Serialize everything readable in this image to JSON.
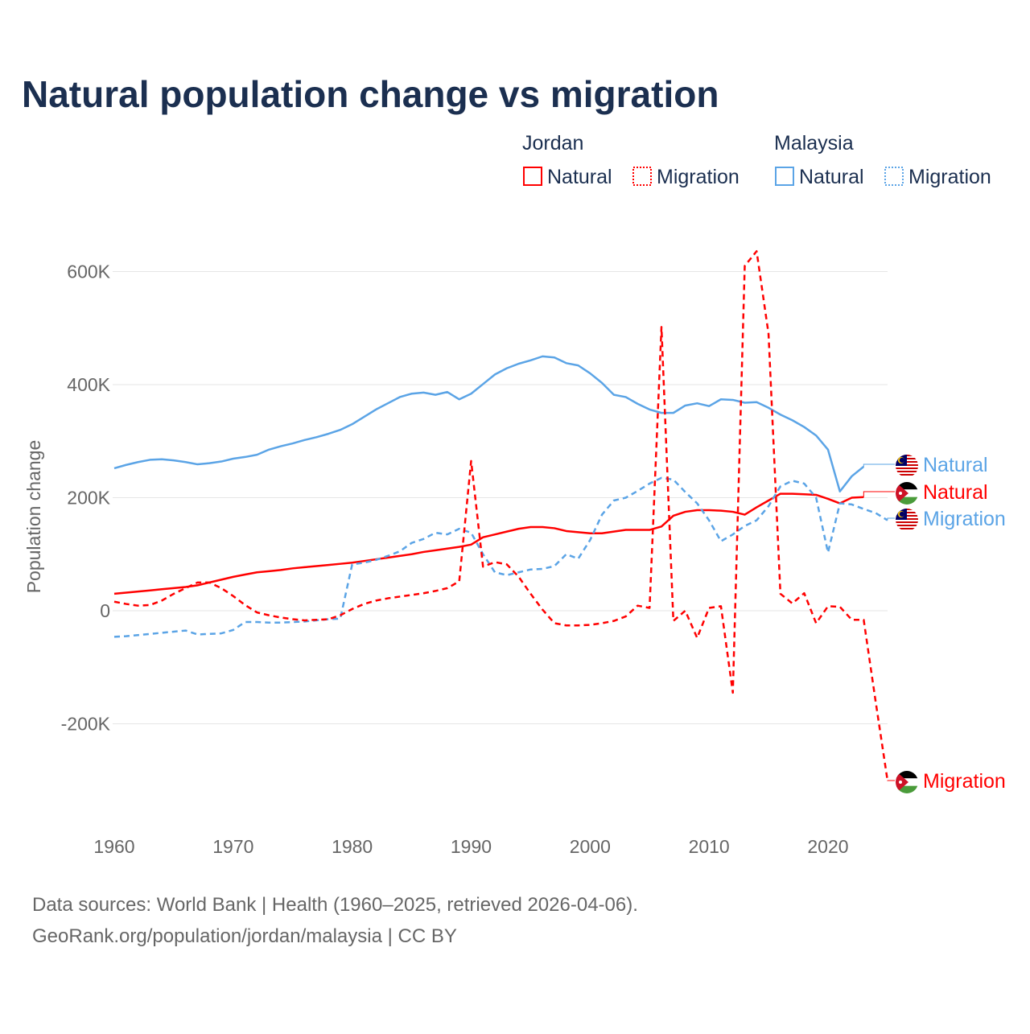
{
  "chart_data": {
    "type": "line",
    "title": "Natural population change vs migration",
    "xlabel": "",
    "ylabel": "Population change",
    "xlim": [
      1960,
      2025
    ],
    "ylim": [
      -300000,
      650000
    ],
    "grid": true,
    "x_ticks": [
      "1960",
      "1970",
      "1980",
      "1990",
      "2000",
      "2010",
      "2020"
    ],
    "x_tick_values": [
      1960,
      1970,
      1980,
      1990,
      2000,
      2010,
      2020
    ],
    "y_ticks": [
      "600K",
      "400K",
      "200K",
      "0",
      "-200K"
    ],
    "y_tick_values": [
      600,
      400,
      200,
      0,
      -200
    ],
    "units": "thousands",
    "start_year": 1960,
    "legend": {
      "placement": "top-right",
      "groups": [
        {
          "name": "Jordan",
          "entries": [
            "Natural",
            "Migration"
          ]
        },
        {
          "name": "Malaysia",
          "entries": [
            "Natural",
            "Migration"
          ]
        }
      ]
    },
    "series": [
      {
        "name": "Malaysia Natural",
        "country": "Malaysia",
        "label": "Natural",
        "color": "#5ba4e6",
        "dash": false,
        "values": [
          252,
          258,
          263,
          267,
          268,
          266,
          263,
          259,
          261,
          264,
          269,
          272,
          276,
          285,
          291,
          296,
          302,
          307,
          313,
          320,
          330,
          343,
          356,
          367,
          378,
          384,
          386,
          382,
          387,
          374,
          384,
          401,
          418,
          429,
          437,
          443,
          450,
          448,
          438,
          434,
          420,
          403,
          382,
          378,
          366,
          356,
          350,
          350,
          363,
          367,
          362,
          374,
          373,
          368,
          369,
          359,
          347,
          337,
          325,
          310,
          285,
          211,
          238,
          255,
          null,
          null
        ]
      },
      {
        "name": "Jordan Natural",
        "country": "Jordan",
        "label": "Natural",
        "color": "#ff0000",
        "dash": false,
        "values": [
          30,
          32,
          34,
          36,
          38,
          40,
          42,
          45,
          50,
          55,
          60,
          64,
          68,
          70,
          72,
          75,
          77,
          79,
          81,
          83,
          85,
          88,
          91,
          94,
          97,
          100,
          104,
          107,
          110,
          113,
          117,
          130,
          135,
          140,
          145,
          148,
          148,
          146,
          141,
          139,
          137,
          137,
          140,
          143,
          143,
          143,
          149,
          168,
          175,
          178,
          178,
          177,
          175,
          170,
          183,
          195,
          207,
          207,
          206,
          205,
          198,
          190,
          200,
          201,
          null,
          null
        ]
      },
      {
        "name": "Malaysia Migration",
        "country": "Malaysia",
        "label": "Migration",
        "color": "#5ba4e6",
        "dash": true,
        "values": [
          -46,
          -45,
          -43,
          -41,
          -39,
          -37,
          -35,
          -42,
          -41,
          -40,
          -34,
          -20,
          -20,
          -21,
          -21,
          -20,
          -19,
          -17,
          -15,
          -14,
          82,
          85,
          90,
          97,
          105,
          120,
          127,
          138,
          135,
          145,
          138,
          100,
          68,
          63,
          68,
          73,
          74,
          79,
          100,
          92,
          125,
          170,
          195,
          200,
          212,
          225,
          235,
          232,
          210,
          190,
          160,
          123,
          135,
          150,
          160,
          185,
          220,
          230,
          225,
          200,
          103,
          190,
          188,
          180,
          173,
          160
        ]
      },
      {
        "name": "Jordan Migration",
        "country": "Jordan",
        "label": "Migration",
        "color": "#ff0000",
        "dash": true,
        "values": [
          16,
          12,
          9,
          10,
          18,
          30,
          40,
          50,
          50,
          40,
          26,
          10,
          -3,
          -8,
          -12,
          -15,
          -17,
          -16,
          -15,
          -8,
          3,
          12,
          18,
          22,
          25,
          28,
          31,
          35,
          40,
          52,
          265,
          78,
          86,
          82,
          60,
          30,
          2,
          -22,
          -26,
          -26,
          -25,
          -22,
          -18,
          -10,
          9,
          5,
          502,
          -18,
          0,
          -48,
          5,
          8,
          -145,
          610,
          636,
          490,
          30,
          13,
          31,
          -22,
          8,
          7,
          -16,
          -16,
          -160,
          -300
        ]
      }
    ]
  },
  "footer": {
    "line1": "Data sources: World Bank | Health (1960–2025, retrieved 2026-04-06).",
    "line2": "GeoRank.org/population/jordan/malaysia | CC BY"
  },
  "colors": {
    "title": "#1b2f50",
    "jordan": "#ff0000",
    "malaysia": "#5ba4e6",
    "grid": "#e6e6e6",
    "axis_text": "#666666"
  }
}
